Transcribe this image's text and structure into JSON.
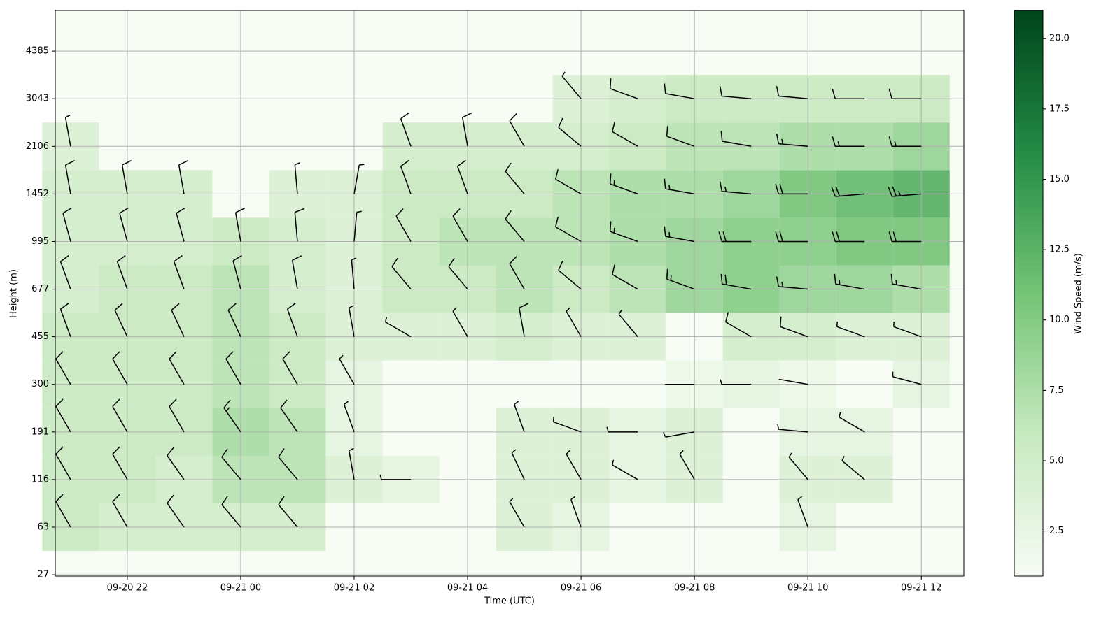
{
  "chart_data": {
    "type": "wind-barb-heatmap",
    "x_label": "Time (UTC)",
    "y_label": "Height (m)",
    "colorbar_label": "Wind Speed (m/s)",
    "colormap": [
      "#f7fcf5",
      "#c7e9c0",
      "#74c476",
      "#238b45",
      "#00441b"
    ],
    "barb_color": "#000000",
    "grid": true,
    "xlim": [
      20.73,
      36.75
    ],
    "xticks": [
      {
        "value": 22,
        "label": "09-20 22"
      },
      {
        "value": 24,
        "label": "09-21 00"
      },
      {
        "value": 26,
        "label": "09-21 02"
      },
      {
        "value": 28,
        "label": "09-21 04"
      },
      {
        "value": 30,
        "label": "09-21 06"
      },
      {
        "value": 32,
        "label": "09-21 08"
      },
      {
        "value": 34,
        "label": "09-21 10"
      },
      {
        "value": 36,
        "label": "09-21 12"
      }
    ],
    "ylim": [
      26,
      5530
    ],
    "yticks": [
      27,
      63,
      116,
      191,
      300,
      455,
      677,
      995,
      1452,
      2106,
      3043,
      4385
    ],
    "clim": [
      0.9,
      21
    ],
    "cticks": [
      {
        "value": 2.5,
        "label": "2.5"
      },
      {
        "value": 5,
        "label": "5.0"
      },
      {
        "value": 7.5,
        "label": "7.5"
      },
      {
        "value": 10,
        "label": "10.0"
      },
      {
        "value": 12.5,
        "label": "12.5"
      },
      {
        "value": 15,
        "label": "15.0"
      },
      {
        "value": 17.5,
        "label": "17.5"
      },
      {
        "value": 20,
        "label": "20.0"
      }
    ],
    "x": [
      21,
      22,
      23,
      24,
      25,
      26,
      27,
      28,
      29,
      30,
      31,
      32,
      33,
      34,
      35,
      36
    ],
    "heights": [
      63,
      116,
      191,
      300,
      455,
      677,
      995,
      1452,
      2106,
      3043
    ],
    "speed": [
      [
        6,
        6,
        6,
        6,
        6,
        5,
        5,
        5,
        4,
        null
      ],
      [
        5,
        6,
        6,
        6,
        6,
        6,
        5,
        5,
        null,
        null
      ],
      [
        5,
        5,
        6,
        6,
        6,
        6,
        5,
        5,
        null,
        null
      ],
      [
        5,
        7,
        8,
        7,
        7,
        7,
        6,
        null,
        null,
        null
      ],
      [
        5,
        7,
        7,
        6,
        6,
        5,
        5,
        4,
        null,
        null
      ],
      [
        null,
        4,
        3,
        3,
        4,
        4,
        4,
        4,
        null,
        null
      ],
      [
        null,
        3,
        null,
        null,
        4,
        6,
        6,
        6,
        5,
        null
      ],
      [
        null,
        null,
        null,
        null,
        4,
        6,
        7,
        6,
        5,
        null
      ],
      [
        4,
        4,
        4,
        null,
        5,
        7,
        7,
        6,
        5,
        null
      ],
      [
        3,
        4,
        4,
        null,
        4,
        6,
        7,
        7,
        5,
        4
      ],
      [
        null,
        3,
        3,
        null,
        4,
        7,
        8,
        8,
        6,
        5
      ],
      [
        null,
        4,
        4,
        2,
        null,
        9,
        9,
        8,
        7,
        6
      ],
      [
        null,
        null,
        null,
        3,
        5,
        10,
        10,
        9,
        7,
        6
      ],
      [
        3,
        4,
        3,
        2,
        5,
        9,
        10,
        11,
        8,
        6
      ],
      [
        null,
        4,
        3,
        null,
        4,
        9,
        11,
        12,
        8,
        6
      ],
      [
        null,
        null,
        null,
        3,
        4,
        8,
        11,
        13,
        9,
        6
      ]
    ],
    "direction": [
      [
        330,
        330,
        330,
        330,
        340,
        340,
        345,
        350,
        350,
        null
      ],
      [
        330,
        330,
        330,
        330,
        335,
        340,
        345,
        350,
        null,
        null
      ],
      [
        325,
        325,
        330,
        330,
        335,
        340,
        345,
        350,
        null,
        null
      ],
      [
        320,
        320,
        325,
        330,
        335,
        345,
        350,
        null,
        null,
        null
      ],
      [
        320,
        320,
        325,
        330,
        340,
        350,
        355,
        355,
        null,
        null
      ],
      [
        null,
        350,
        340,
        330,
        350,
        355,
        5,
        10,
        null,
        null
      ],
      [
        null,
        270,
        null,
        null,
        300,
        320,
        330,
        340,
        340,
        null
      ],
      [
        null,
        null,
        null,
        null,
        330,
        320,
        330,
        340,
        350,
        null
      ],
      [
        330,
        335,
        340,
        null,
        350,
        330,
        320,
        320,
        330,
        null
      ],
      [
        340,
        330,
        290,
        null,
        330,
        310,
        300,
        300,
        310,
        320
      ],
      [
        null,
        300,
        270,
        null,
        320,
        300,
        290,
        290,
        300,
        290
      ],
      [
        null,
        330,
        260,
        270,
        null,
        290,
        280,
        280,
        290,
        280
      ],
      [
        null,
        null,
        null,
        270,
        300,
        280,
        270,
        275,
        280,
        275
      ],
      [
        340,
        320,
        275,
        280,
        290,
        275,
        270,
        270,
        275,
        275
      ],
      [
        null,
        310,
        300,
        null,
        290,
        280,
        270,
        265,
        270,
        270
      ],
      [
        null,
        null,
        null,
        285,
        290,
        280,
        270,
        265,
        270,
        270
      ]
    ]
  }
}
